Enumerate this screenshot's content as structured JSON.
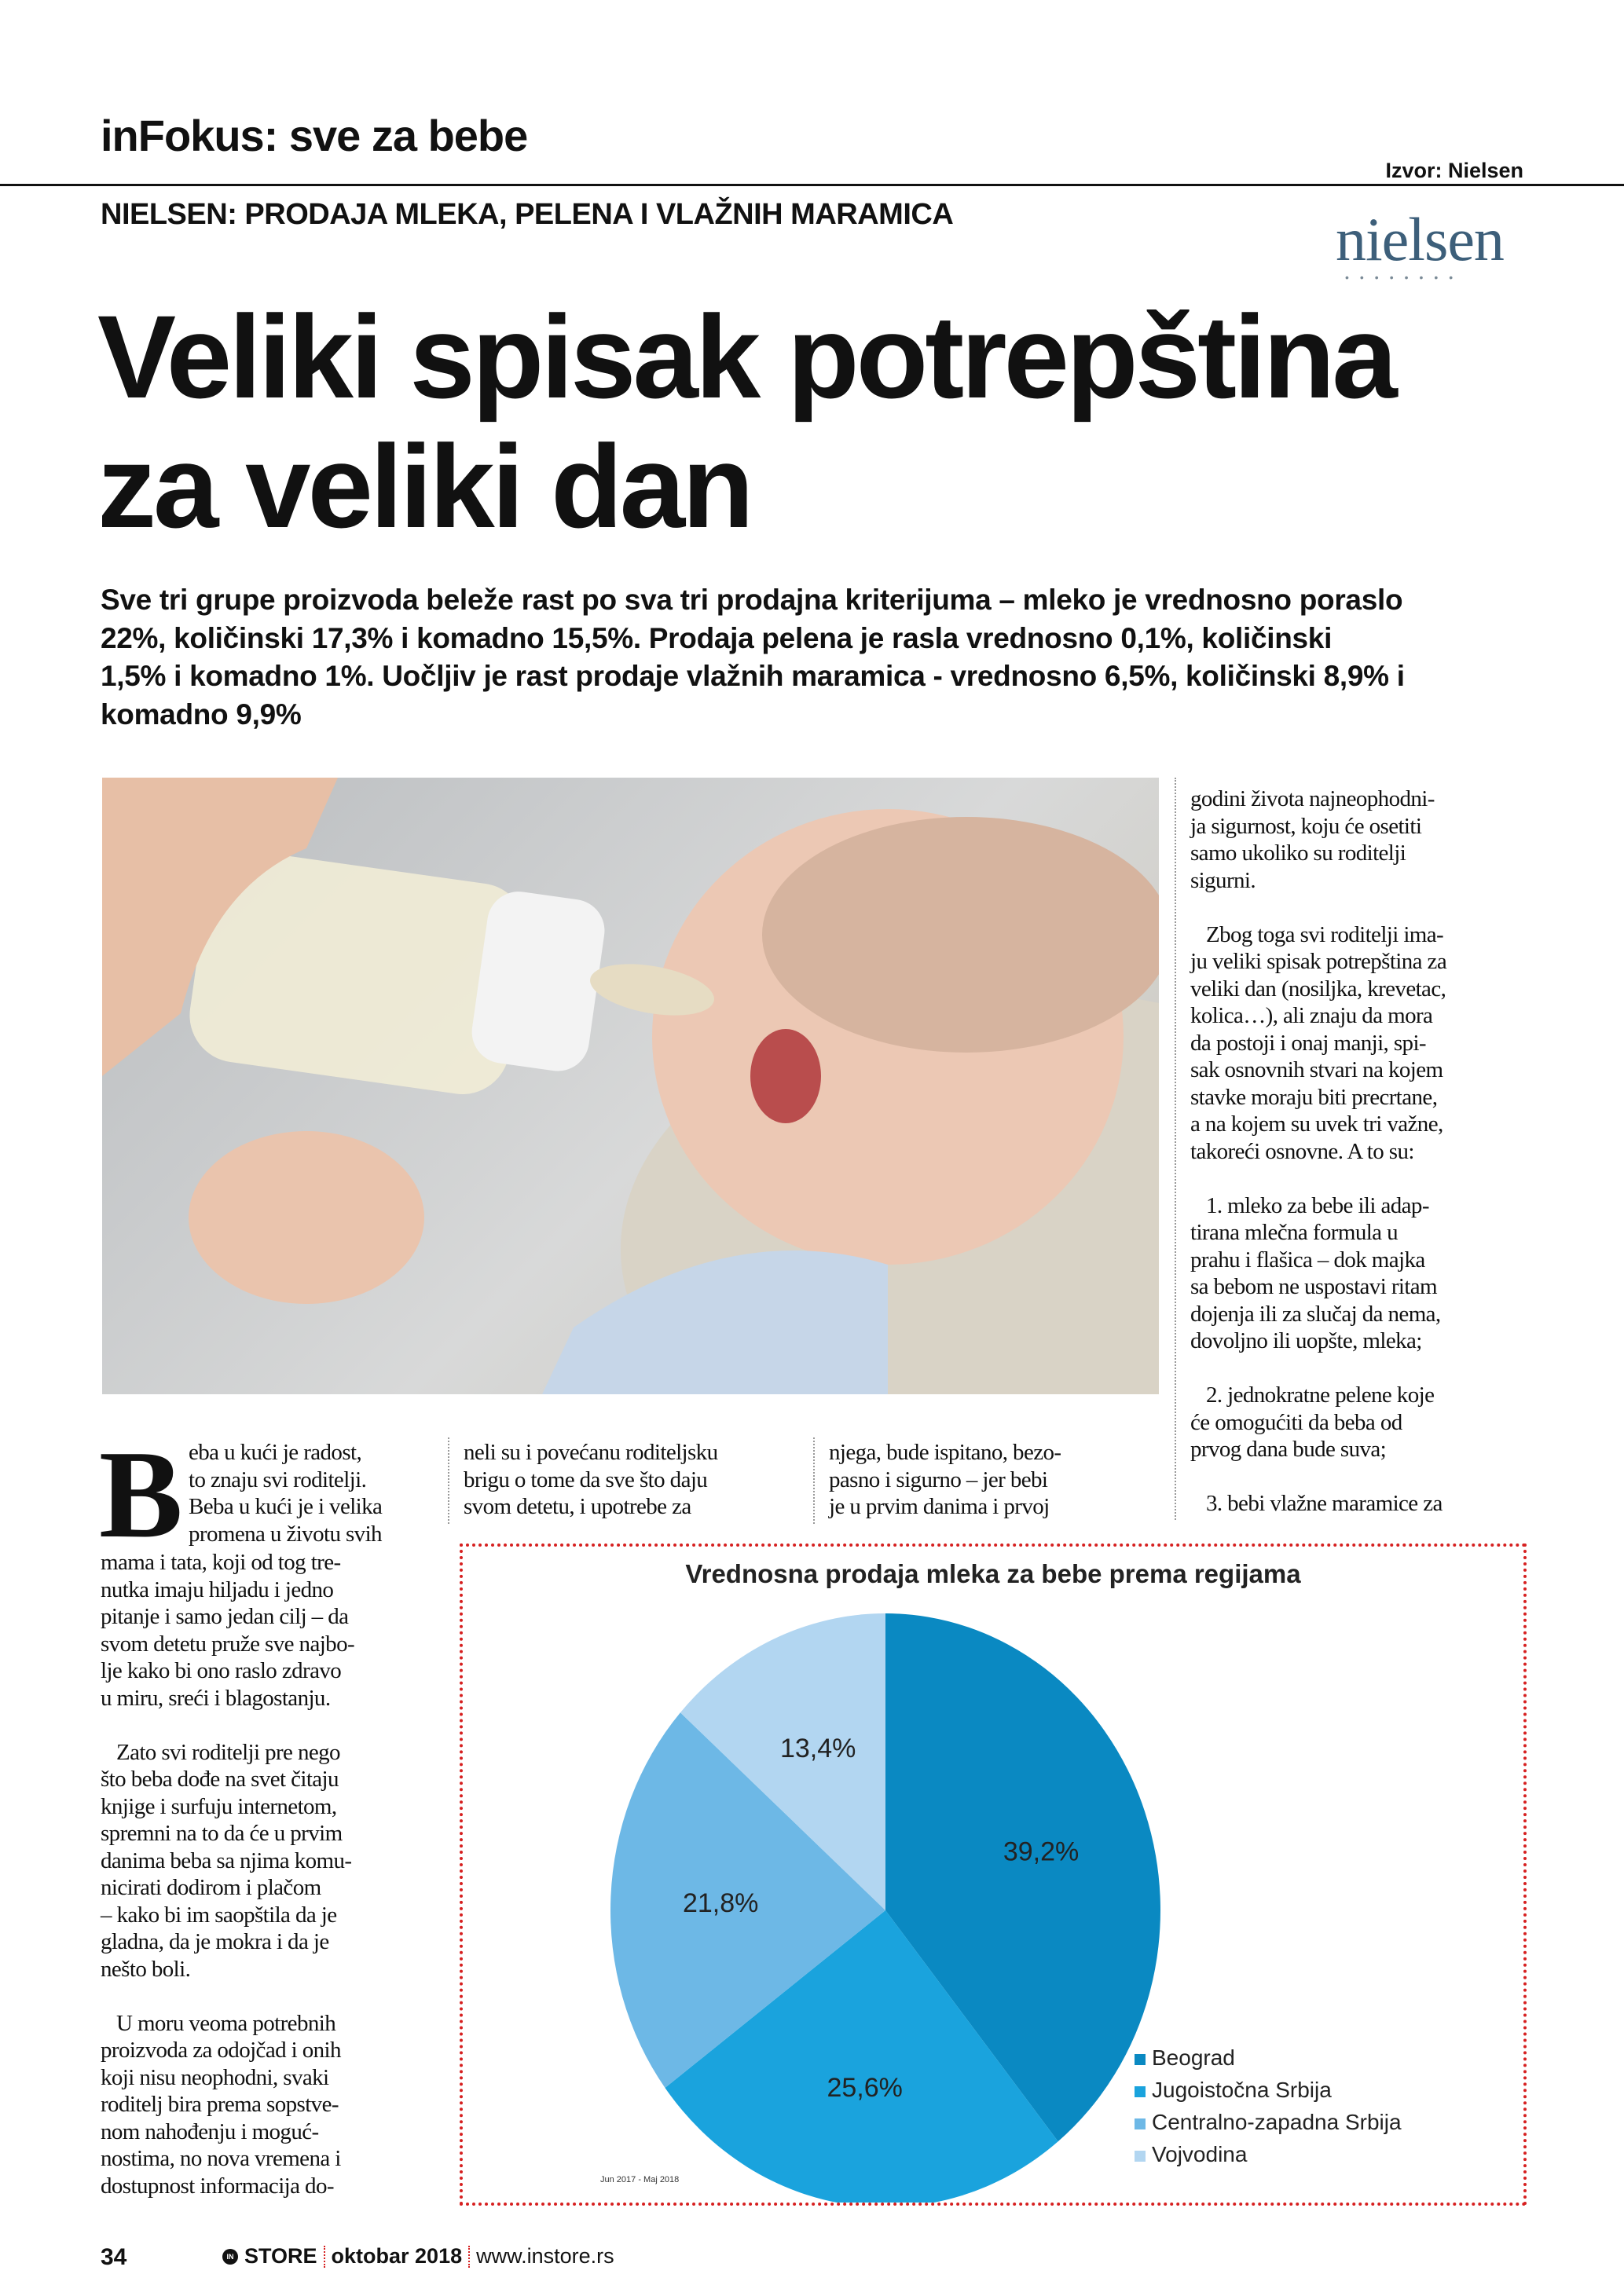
{
  "header": {
    "section": "inFokus: sve za bebe",
    "source": "Izvor: Nielsen",
    "kicker": "NIELSEN: PRODAJA MLEKA, PELENA I VLAŽNIH MARAMICA",
    "logo_text": "nielsen"
  },
  "title_lines": [
    "Veliki spisak potrepština",
    "za veliki dan"
  ],
  "lead_lines": [
    "Sve tri grupe proizvoda beleže rast po sva tri prodajna kriterijuma – mleko je vrednosno poraslo",
    "22%, količinski 17,3% i komadno 15,5%. Prodaja pelena je rasla vrednosno 0,1%, količinski",
    "1,5% i komadno 1%. Uočljiv je rast prodaje vlažnih maramica - vrednosno 6,5%, količinski 8,9% i",
    "komadno 9,9%"
  ],
  "column1": {
    "dropcap": "B",
    "dropcap_lines": [
      "eba u kući je radost,",
      "to znaju svi roditelji.",
      "Beba u kući je i velika",
      "promena u životu svih"
    ],
    "paragraphs": [
      [
        "mama i tata, koji od tog tre-",
        "nutka imaju hiljadu i jedno",
        "pitanje i samo jedan cilj – da",
        "svom detetu pruže sve najbo-",
        "lje kako bi ono raslo zdravo",
        "u miru, sreći i blagostanju."
      ],
      [
        "   Zato svi roditelji pre nego",
        "što beba dođe na svet čitaju",
        "knjige i surfuju internetom,",
        "spremni na to da će u prvim",
        "danima beba sa njima komu-",
        "nicirati dodirom i plačom",
        "– kako bi im saopštila da je",
        "gladna, da je mokra i da je",
        "nešto boli."
      ],
      [
        "   U moru veoma potrebnih",
        "proizvoda za odojčad i onih",
        "koji nisu neophodni, svaki",
        "roditelj bira prema sopstve-",
        "nom nahođenju i moguć-",
        "nostima, no nova vremena i",
        "dostupnost informacija do-"
      ]
    ]
  },
  "column2": [
    "neli su i povećanu roditeljsku",
    "brigu o tome da sve što daju",
    "svom detetu, i upotrebe za"
  ],
  "column3": [
    "njega, bude ispitano, bezo-",
    "pasno i sigurno – jer bebi",
    "je u prvim danima i prvoj"
  ],
  "column4": {
    "paragraphs": [
      [
        "godini života najneophodni-",
        "ja sigurnost, koju će osetiti",
        "samo ukoliko su roditelji",
        "sigurni."
      ],
      [
        "   Zbog toga svi roditelji ima-",
        "ju veliki spisak potrepština za",
        "veliki dan (nosiljka, krevetac,",
        "kolica…), ali znaju da mora",
        "da postoji i onaj manji, spi-",
        "sak osnovnih stvari na kojem",
        "stavke moraju biti precrtane,",
        "a na kojem su uvek tri važne,",
        "takoreći osnovne. A to su:"
      ],
      [
        "   1. mleko za bebe ili adap-",
        "tirana mlečna formula u",
        "prahu i flašica – dok majka",
        "sa bebom ne uspostavi ritam",
        "dojenja ili za slučaj da nema,",
        "dovoljno ili uopšte, mleka;"
      ],
      [
        "   2. jednokratne pelene koje",
        "će omogućiti da beba od",
        "prvog dana bude suva;"
      ],
      [
        "   3. bebi vlažne maramice za"
      ]
    ]
  },
  "chart_data": {
    "type": "pie",
    "title": "Vrednosna prodaja mleka za bebe prema regijama",
    "note": "Jun 2017 - Maj 2018",
    "legend_position": "bottom-right",
    "categories": [
      "Beograd",
      "Jugoistočna Srbija",
      "Centralno-zapadna Srbija",
      "Vojvodina"
    ],
    "values": [
      39.2,
      25.6,
      21.8,
      13.4
    ],
    "labels": [
      "39,2%",
      "25,6%",
      "21,8%",
      "13,4%"
    ],
    "colors": [
      "#0a89c2",
      "#1aa3dd",
      "#6db8e6",
      "#b2d6f1"
    ]
  },
  "footer": {
    "page": "34",
    "brand_icon": "IN",
    "brand": "STORE",
    "issue": "oktobar 2018",
    "url": "www.instore.rs"
  }
}
